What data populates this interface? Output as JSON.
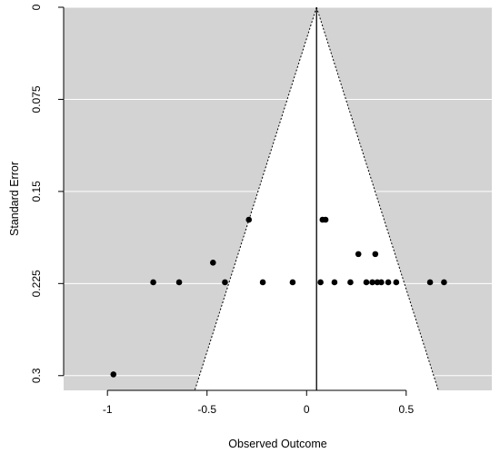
{
  "chart_data": {
    "type": "scatter",
    "title": "",
    "xlabel": "Observed Outcome",
    "ylabel": "Standard Error",
    "xlim": [
      -1.22,
      0.93
    ],
    "ylim": [
      0,
      0.312
    ],
    "y_reversed": true,
    "x_ticks": [
      -1,
      -0.5,
      0,
      0.5
    ],
    "x_tick_labels": [
      "-1",
      "-0.5",
      "0",
      "0.5"
    ],
    "y_ticks": [
      0,
      0.075,
      0.15,
      0.225,
      0.3
    ],
    "y_tick_labels": [
      "0",
      "0.075",
      "0.15",
      "0.225",
      "0.3"
    ],
    "grid": "horizontal",
    "background_color": "#d3d3d3",
    "funnel_color": "#ffffff",
    "point_color": "#000000",
    "pooled_estimate": 0.05,
    "funnel_z": 1.96,
    "points": [
      {
        "x": -0.97,
        "y": 0.299
      },
      {
        "x": -0.77,
        "y": 0.224
      },
      {
        "x": -0.64,
        "y": 0.224
      },
      {
        "x": -0.47,
        "y": 0.208
      },
      {
        "x": -0.41,
        "y": 0.224
      },
      {
        "x": -0.29,
        "y": 0.173
      },
      {
        "x": -0.22,
        "y": 0.224
      },
      {
        "x": -0.07,
        "y": 0.224
      },
      {
        "x": 0.07,
        "y": 0.224
      },
      {
        "x": 0.08,
        "y": 0.173
      },
      {
        "x": 0.095,
        "y": 0.173
      },
      {
        "x": 0.14,
        "y": 0.224
      },
      {
        "x": 0.22,
        "y": 0.224
      },
      {
        "x": 0.26,
        "y": 0.201
      },
      {
        "x": 0.3,
        "y": 0.224
      },
      {
        "x": 0.33,
        "y": 0.224
      },
      {
        "x": 0.345,
        "y": 0.201
      },
      {
        "x": 0.355,
        "y": 0.224
      },
      {
        "x": 0.375,
        "y": 0.224
      },
      {
        "x": 0.41,
        "y": 0.224
      },
      {
        "x": 0.45,
        "y": 0.224
      },
      {
        "x": 0.62,
        "y": 0.224
      },
      {
        "x": 0.69,
        "y": 0.224
      }
    ]
  }
}
